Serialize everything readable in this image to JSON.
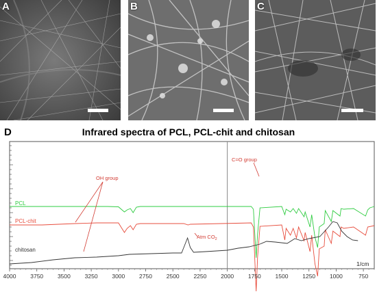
{
  "sem_panels": [
    {
      "label": "A"
    },
    {
      "label": "B"
    },
    {
      "label": "C"
    }
  ],
  "ir_panel": {
    "label": "D",
    "title": "Infrared spectra of PCL, PCL-chit and chitosan",
    "unit_label": "1/cm",
    "annotations": {
      "oh": "OH group",
      "co": "C=O group",
      "atm_prefix": "Atm CO",
      "atm_sub": "2"
    }
  },
  "chart_data": {
    "type": "line",
    "title": "Infrared spectra of PCL, PCL-chit and chitosan",
    "xlabel": "1/cm",
    "ylabel": "",
    "xlim": [
      4000,
      650
    ],
    "x_reversed": true,
    "x_ticks": [
      4000,
      3750,
      3500,
      3250,
      3000,
      2750,
      2500,
      2250,
      2000,
      1750,
      1500,
      1250,
      1000,
      750
    ],
    "grid": false,
    "series": [
      {
        "name": "PCL",
        "color": "#2ecc40",
        "points": [
          [
            4000,
            0
          ],
          [
            3100,
            0
          ],
          [
            3000,
            -0.5
          ],
          [
            2945,
            -8
          ],
          [
            2920,
            -5
          ],
          [
            2890,
            -3
          ],
          [
            2865,
            -9
          ],
          [
            2835,
            -1
          ],
          [
            2800,
            0
          ],
          [
            1780,
            0
          ],
          [
            1760,
            -4
          ],
          [
            1735,
            -75
          ],
          [
            1722,
            -40
          ],
          [
            1700,
            -2
          ],
          [
            1500,
            0
          ],
          [
            1472,
            -12
          ],
          [
            1460,
            -4
          ],
          [
            1420,
            -8
          ],
          [
            1395,
            -3
          ],
          [
            1365,
            -10
          ],
          [
            1345,
            -3
          ],
          [
            1295,
            -15
          ],
          [
            1285,
            -8
          ],
          [
            1240,
            -30
          ],
          [
            1225,
            -12
          ],
          [
            1195,
            -45
          ],
          [
            1170,
            -60
          ],
          [
            1155,
            -30
          ],
          [
            1110,
            -25
          ],
          [
            1100,
            -6
          ],
          [
            1045,
            -22
          ],
          [
            1030,
            -6
          ],
          [
            965,
            -14
          ],
          [
            955,
            -3
          ],
          [
            930,
            -4
          ],
          [
            840,
            -3
          ],
          [
            730,
            -14
          ],
          [
            710,
            -5
          ],
          [
            690,
            -2
          ],
          [
            650,
            0
          ]
        ]
      },
      {
        "name": "PCL-chit",
        "color": "#e74c3c",
        "points": [
          [
            4000,
            -3
          ],
          [
            3700,
            -3
          ],
          [
            3400,
            -1
          ],
          [
            3200,
            0
          ],
          [
            3000,
            0
          ],
          [
            2945,
            -14
          ],
          [
            2920,
            -8
          ],
          [
            2890,
            -4
          ],
          [
            2865,
            -10
          ],
          [
            2835,
            -2
          ],
          [
            2800,
            -1
          ],
          [
            2400,
            -1
          ],
          [
            2360,
            -3
          ],
          [
            2340,
            -2
          ],
          [
            1780,
            0
          ],
          [
            1760,
            -6
          ],
          [
            1735,
            -100
          ],
          [
            1722,
            -50
          ],
          [
            1700,
            -5
          ],
          [
            1500,
            -3
          ],
          [
            1472,
            -25
          ],
          [
            1460,
            -8
          ],
          [
            1420,
            -18
          ],
          [
            1395,
            -8
          ],
          [
            1365,
            -22
          ],
          [
            1345,
            -6
          ],
          [
            1295,
            -26
          ],
          [
            1285,
            -14
          ],
          [
            1240,
            -42
          ],
          [
            1225,
            -18
          ],
          [
            1195,
            -60
          ],
          [
            1170,
            -78
          ],
          [
            1155,
            -38
          ],
          [
            1110,
            -34
          ],
          [
            1100,
            -10
          ],
          [
            1045,
            -30
          ],
          [
            1030,
            -12
          ],
          [
            965,
            -20
          ],
          [
            955,
            -6
          ],
          [
            930,
            -8
          ],
          [
            840,
            -6
          ],
          [
            730,
            -18
          ],
          [
            710,
            -6
          ],
          [
            650,
            -4
          ]
        ]
      },
      {
        "name": "chitosan",
        "color": "#333333",
        "points": [
          [
            4000,
            -16
          ],
          [
            3800,
            -14
          ],
          [
            3600,
            -10
          ],
          [
            3400,
            -7
          ],
          [
            3200,
            -6
          ],
          [
            3000,
            -4
          ],
          [
            2900,
            -2
          ],
          [
            2700,
            -1
          ],
          [
            2500,
            0
          ],
          [
            2420,
            0
          ],
          [
            2395,
            10
          ],
          [
            2365,
            22
          ],
          [
            2340,
            8
          ],
          [
            2310,
            1
          ],
          [
            2200,
            2
          ],
          [
            2000,
            4
          ],
          [
            1900,
            7
          ],
          [
            1800,
            9
          ],
          [
            1700,
            13
          ],
          [
            1640,
            17
          ],
          [
            1560,
            16
          ],
          [
            1450,
            14
          ],
          [
            1380,
            21
          ],
          [
            1320,
            18
          ],
          [
            1250,
            21
          ],
          [
            1150,
            24
          ],
          [
            1070,
            38
          ],
          [
            1030,
            46
          ],
          [
            990,
            44
          ],
          [
            950,
            32
          ],
          [
            900,
            24
          ],
          [
            850,
            19
          ],
          [
            800,
            18
          ]
        ]
      }
    ]
  }
}
